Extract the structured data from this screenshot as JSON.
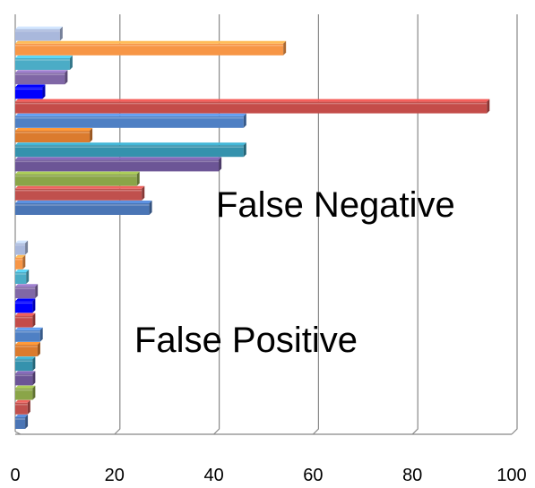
{
  "chart_data": {
    "type": "bar",
    "orientation": "horizontal",
    "style": "3d",
    "grid": true,
    "xlim": [
      0,
      100
    ],
    "x_ticks": [
      "0",
      "20",
      "40",
      "60",
      "80",
      "100"
    ],
    "categories": [
      "False Negative",
      "False Positive"
    ],
    "series": [
      {
        "color": "#4a75b5",
        "values": [
          27,
          2
        ]
      },
      {
        "color": "#c0504d",
        "values": [
          25.5,
          2.5
        ]
      },
      {
        "color": "#8aa548",
        "values": [
          24.5,
          3.5
        ]
      },
      {
        "color": "#6c5596",
        "values": [
          41,
          3.5
        ]
      },
      {
        "color": "#3592ad",
        "values": [
          46,
          3.5
        ]
      },
      {
        "color": "#db7b2e",
        "values": [
          15,
          4.5
        ]
      },
      {
        "color": "#4f80c4",
        "values": [
          46,
          5
        ]
      },
      {
        "color": "#c44c49",
        "values": [
          95,
          3.5
        ]
      },
      {
        "color": "#0000ff",
        "values": [
          5.5,
          3.5
        ]
      },
      {
        "color": "#8067a6",
        "values": [
          10,
          4
        ]
      },
      {
        "color": "#4bacc6",
        "values": [
          11,
          2.2
        ]
      },
      {
        "color": "#f79646",
        "values": [
          54,
          1.5
        ]
      },
      {
        "color": "#a9b8dc",
        "values": [
          9,
          2
        ]
      }
    ]
  },
  "labels": {
    "false_negative": "False Negative",
    "false_positive": "False Positive"
  }
}
